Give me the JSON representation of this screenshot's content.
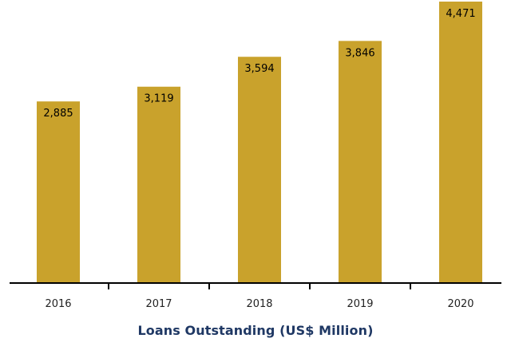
{
  "chart_data": {
    "type": "bar",
    "categories": [
      "2016",
      "2017",
      "2018",
      "2019",
      "2020"
    ],
    "values": [
      2885,
      3119,
      3594,
      3846,
      4471
    ],
    "data_labels": [
      "2,885",
      "3,119",
      "3,594",
      "3,846",
      "4,471"
    ],
    "title": "Loans Outstanding (US$ Million)",
    "xlabel": "",
    "ylabel": "",
    "ylim": [
      0,
      4471
    ],
    "grid": false,
    "legend": "none",
    "colors": {
      "bar": "#c9a22c",
      "axis": "#000000",
      "title": "#1f3864"
    }
  }
}
